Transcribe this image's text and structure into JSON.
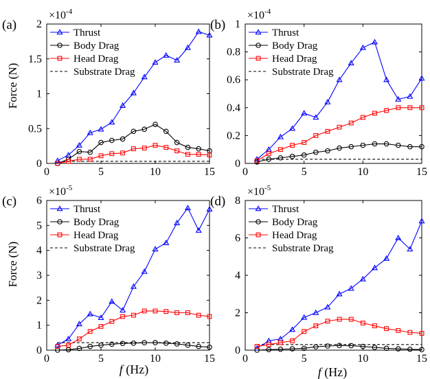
{
  "figure": {
    "ylabel": "Force (N)",
    "xlabel_italic": "f",
    "xlabel_rest": " (Hz)"
  },
  "chart_data": [
    {
      "type": "line",
      "panel_label": "(a)",
      "exponent_base": "×10",
      "exponent_power": "-4",
      "xlim": [
        0,
        15
      ],
      "ylim": [
        0,
        2
      ],
      "xticks": [
        0,
        5,
        10,
        15
      ],
      "yticks": [
        0,
        0.5,
        1,
        1.5,
        2
      ],
      "ytick_labels": [
        "0",
        "0.5",
        "1",
        "1.5",
        "2"
      ],
      "legend_position": "top-left",
      "x": [
        1,
        2,
        3,
        4,
        5,
        6,
        7,
        8,
        9,
        10,
        11,
        12,
        13,
        14,
        15
      ],
      "series": [
        {
          "name": "Thrust",
          "color": "#0000ff",
          "marker": "triangle",
          "values": [
            0.04,
            0.12,
            0.26,
            0.44,
            0.49,
            0.59,
            0.83,
            1.01,
            1.24,
            1.45,
            1.55,
            1.48,
            1.66,
            1.89,
            1.84
          ]
        },
        {
          "name": "Body Drag",
          "color": "#000000",
          "marker": "circle",
          "values": [
            0.0,
            0.06,
            0.17,
            0.16,
            0.3,
            0.33,
            0.35,
            0.46,
            0.49,
            0.56,
            0.46,
            0.3,
            0.23,
            0.21,
            0.18
          ]
        },
        {
          "name": "Head Drag",
          "color": "#ff0000",
          "marker": "square",
          "values": [
            0.0,
            0.03,
            0.06,
            0.06,
            0.11,
            0.14,
            0.15,
            0.21,
            0.22,
            0.26,
            0.23,
            0.18,
            0.13,
            0.13,
            0.12
          ]
        },
        {
          "name": "Substrate Drag",
          "color": "#000000",
          "marker": "none",
          "dashed": true,
          "values": [
            0.03,
            0.03,
            0.03,
            0.03,
            0.03,
            0.03,
            0.03,
            0.03,
            0.03,
            0.03,
            0.03,
            0.03,
            0.03,
            0.03,
            0.03
          ]
        }
      ]
    },
    {
      "type": "line",
      "panel_label": "(b)",
      "exponent_base": "×10",
      "exponent_power": "-4",
      "xlim": [
        0,
        15
      ],
      "ylim": [
        0,
        1
      ],
      "xticks": [
        0,
        5,
        10,
        15
      ],
      "yticks": [
        0,
        0.2,
        0.4,
        0.6,
        0.8,
        1
      ],
      "ytick_labels": [
        "0",
        "0.2",
        "0.4",
        "0.6",
        "0.8",
        "1"
      ],
      "legend_position": "top-left",
      "x": [
        1,
        2,
        3,
        4,
        5,
        6,
        7,
        8,
        9,
        10,
        11,
        12,
        13,
        14,
        15
      ],
      "series": [
        {
          "name": "Thrust",
          "color": "#0000ff",
          "marker": "triangle",
          "values": [
            0.03,
            0.1,
            0.19,
            0.25,
            0.36,
            0.33,
            0.44,
            0.6,
            0.72,
            0.83,
            0.87,
            0.6,
            0.46,
            0.48,
            0.61
          ]
        },
        {
          "name": "Body Drag",
          "color": "#000000",
          "marker": "circle",
          "values": [
            0.01,
            0.03,
            0.04,
            0.05,
            0.06,
            0.08,
            0.09,
            0.11,
            0.12,
            0.13,
            0.14,
            0.14,
            0.13,
            0.12,
            0.12
          ]
        },
        {
          "name": "Head Drag",
          "color": "#ff0000",
          "marker": "square",
          "values": [
            0.02,
            0.07,
            0.1,
            0.13,
            0.15,
            0.2,
            0.23,
            0.26,
            0.29,
            0.33,
            0.36,
            0.38,
            0.4,
            0.4,
            0.4
          ]
        },
        {
          "name": "Substrate Drag",
          "color": "#000000",
          "marker": "none",
          "dashed": true,
          "values": [
            0.03,
            0.03,
            0.03,
            0.03,
            0.03,
            0.03,
            0.03,
            0.03,
            0.03,
            0.03,
            0.03,
            0.03,
            0.03,
            0.03,
            0.03
          ]
        }
      ]
    },
    {
      "type": "line",
      "panel_label": "(c)",
      "exponent_base": "×10",
      "exponent_power": "-5",
      "xlim": [
        0,
        15
      ],
      "ylim": [
        0,
        6
      ],
      "xticks": [
        0,
        5,
        10,
        15
      ],
      "yticks": [
        0,
        1,
        2,
        3,
        4,
        5,
        6
      ],
      "ytick_labels": [
        "0",
        "1",
        "2",
        "3",
        "4",
        "5",
        "6"
      ],
      "legend_position": "top-left",
      "x": [
        1,
        2,
        3,
        4,
        5,
        6,
        7,
        8,
        9,
        10,
        11,
        12,
        13,
        14,
        15
      ],
      "series": [
        {
          "name": "Thrust",
          "color": "#0000ff",
          "marker": "triangle",
          "values": [
            0.2,
            0.45,
            1.05,
            1.45,
            1.3,
            1.95,
            1.6,
            2.55,
            3.15,
            4.05,
            4.3,
            5.1,
            5.7,
            4.8,
            5.65
          ]
        },
        {
          "name": "Body Drag",
          "color": "#000000",
          "marker": "circle",
          "values": [
            0.0,
            0.02,
            0.07,
            0.15,
            0.2,
            0.24,
            0.27,
            0.28,
            0.3,
            0.3,
            0.28,
            0.25,
            0.2,
            0.15,
            0.12
          ]
        },
        {
          "name": "Head Drag",
          "color": "#ff0000",
          "marker": "square",
          "values": [
            0.15,
            0.2,
            0.45,
            0.75,
            0.95,
            1.15,
            1.35,
            1.4,
            1.57,
            1.57,
            1.55,
            1.5,
            1.5,
            1.4,
            1.35
          ]
        },
        {
          "name": "Substrate Drag",
          "color": "#000000",
          "marker": "none",
          "dashed": true,
          "values": [
            0.3,
            0.3,
            0.3,
            0.3,
            0.3,
            0.3,
            0.3,
            0.3,
            0.3,
            0.3,
            0.3,
            0.3,
            0.3,
            0.3,
            0.3
          ]
        }
      ]
    },
    {
      "type": "line",
      "panel_label": "(d)",
      "exponent_base": "×10",
      "exponent_power": "-5",
      "xlim": [
        0,
        15
      ],
      "ylim": [
        0,
        8
      ],
      "xticks": [
        0,
        5,
        10,
        15
      ],
      "yticks": [
        0,
        2,
        4,
        6,
        8
      ],
      "ytick_labels": [
        "0",
        "2",
        "4",
        "6",
        "8"
      ],
      "legend_position": "top-left",
      "x": [
        1,
        2,
        3,
        4,
        5,
        6,
        7,
        8,
        9,
        10,
        11,
        12,
        13,
        14,
        15
      ],
      "series": [
        {
          "name": "Thrust",
          "color": "#0000ff",
          "marker": "triangle",
          "values": [
            0.1,
            0.5,
            0.6,
            1.1,
            1.75,
            2.0,
            2.3,
            3.0,
            3.3,
            3.8,
            4.4,
            4.9,
            6.0,
            5.4,
            6.9
          ]
        },
        {
          "name": "Body Drag",
          "color": "#000000",
          "marker": "circle",
          "values": [
            0.0,
            0.03,
            0.05,
            0.07,
            0.1,
            0.18,
            0.22,
            0.25,
            0.24,
            0.2,
            0.15,
            0.1,
            0.07,
            0.05,
            0.03
          ]
        },
        {
          "name": "Head Drag",
          "color": "#ff0000",
          "marker": "square",
          "values": [
            0.2,
            0.3,
            0.4,
            0.5,
            1.0,
            1.3,
            1.55,
            1.65,
            1.65,
            1.45,
            1.3,
            1.15,
            1.05,
            0.95,
            0.9
          ]
        },
        {
          "name": "Substrate Drag",
          "color": "#000000",
          "marker": "none",
          "dashed": true,
          "values": [
            0.3,
            0.3,
            0.3,
            0.3,
            0.3,
            0.3,
            0.3,
            0.3,
            0.3,
            0.3,
            0.3,
            0.3,
            0.3,
            0.3,
            0.3
          ]
        }
      ]
    }
  ]
}
